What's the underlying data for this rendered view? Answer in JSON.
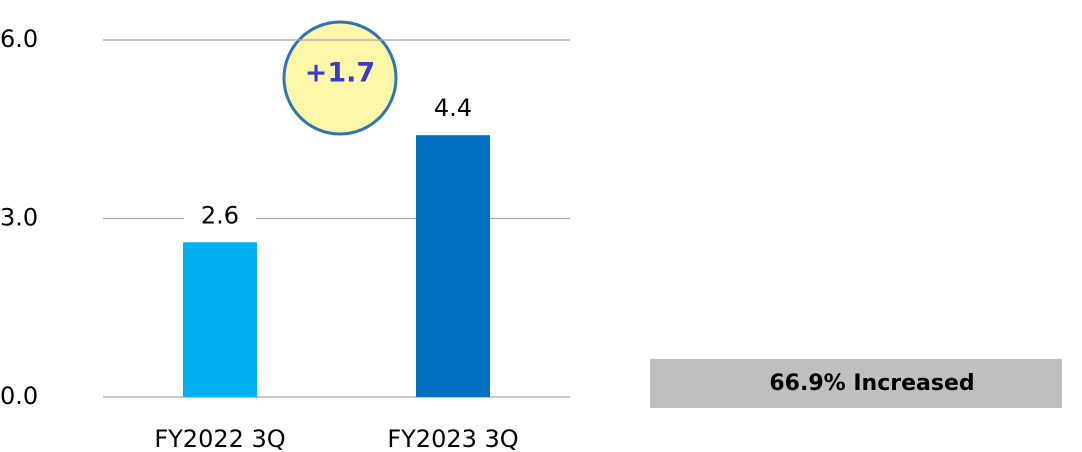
{
  "chart_data": {
    "type": "bar",
    "categories": [
      "FY2022 3Q",
      "FY2023 3Q"
    ],
    "values": [
      2.6,
      4.4
    ],
    "colors": [
      "#00b0f0",
      "#0070c0"
    ],
    "ylim": [
      0,
      6
    ],
    "yticks": [
      {
        "value": 0,
        "label": "0.0"
      },
      {
        "value": 3,
        "label": "3.0"
      },
      {
        "value": 6,
        "label": "6.0"
      }
    ],
    "grid": true,
    "annotations": [
      "+1.7",
      "66.9% Increased"
    ]
  }
}
